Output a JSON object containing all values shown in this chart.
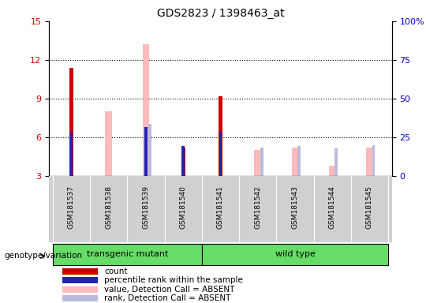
{
  "title": "GDS2823 / 1398463_at",
  "samples": [
    "GSM181537",
    "GSM181538",
    "GSM181539",
    "GSM181540",
    "GSM181541",
    "GSM181542",
    "GSM181543",
    "GSM181544",
    "GSM181545"
  ],
  "count_values": [
    11.4,
    null,
    null,
    5.2,
    9.2,
    null,
    null,
    null,
    null
  ],
  "rank_values": [
    6.4,
    null,
    6.8,
    5.3,
    6.4,
    null,
    null,
    null,
    null
  ],
  "value_absent": [
    null,
    8.0,
    13.2,
    null,
    null,
    5.0,
    5.2,
    3.8,
    5.2
  ],
  "rank_absent": [
    null,
    null,
    7.0,
    null,
    null,
    5.2,
    5.3,
    5.1,
    5.4
  ],
  "ylim_left": [
    3,
    15
  ],
  "ylim_right": [
    0,
    100
  ],
  "yticks_left": [
    3,
    6,
    9,
    12,
    15
  ],
  "yticks_right": [
    0,
    25,
    50,
    75,
    100
  ],
  "ytick_labels_left": [
    "3",
    "6",
    "9",
    "12",
    "15"
  ],
  "ytick_labels_right": [
    "0",
    "25",
    "50",
    "75",
    "100%"
  ],
  "groups": [
    {
      "label": "transgenic mutant",
      "start": 0,
      "end": 3
    },
    {
      "label": "wild type",
      "start": 4,
      "end": 8
    }
  ],
  "genotype_label": "genotype/variation",
  "count_bar_width": 0.1,
  "rank_bar_width": 0.08,
  "value_absent_bar_width": 0.18,
  "rank_absent_bar_width": 0.08,
  "count_color": "#cc0000",
  "rank_color": "#2222bb",
  "value_absent_color": "#ffbbbb",
  "rank_absent_color": "#bbbbdd",
  "plot_bg": "#ffffff",
  "tick_area_bg": "#d0d0d0",
  "group_bg": "#66dd66",
  "group_border": "#000000",
  "legend_items": [
    {
      "color": "#cc0000",
      "label": "count"
    },
    {
      "color": "#2222bb",
      "label": "percentile rank within the sample"
    },
    {
      "color": "#ffbbbb",
      "label": "value, Detection Call = ABSENT"
    },
    {
      "color": "#bbbbdd",
      "label": "rank, Detection Call = ABSENT"
    }
  ]
}
